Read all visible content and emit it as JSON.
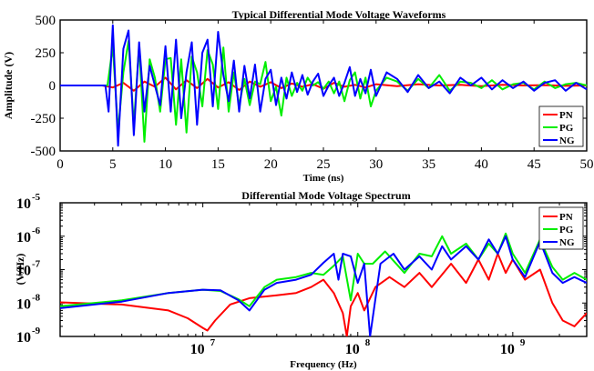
{
  "chart_data": [
    {
      "type": "line",
      "title": "Typical Differential Mode Voltage Waveforms",
      "xlabel": "Time (ns)",
      "ylabel": "Amplitude (V)",
      "xlim": [
        0,
        50
      ],
      "ylim": [
        -500,
        500
      ],
      "x_ticks": [
        "0",
        "5",
        "10",
        "15",
        "20",
        "25",
        "30",
        "35",
        "40",
        "45",
        "50"
      ],
      "y_ticks": [
        "500",
        "250",
        "0",
        "-250",
        "-500"
      ],
      "legend": {
        "placement": "bottom-right",
        "entries": [
          "PN",
          "PG",
          "NG"
        ]
      },
      "grid": false,
      "series": [
        {
          "name": "PN",
          "color": "#ff0000",
          "x": [
            0,
            4,
            5,
            6,
            7,
            8,
            9,
            10,
            11,
            12,
            13,
            14,
            15,
            16,
            17,
            18,
            19,
            20,
            21,
            22,
            23,
            24,
            25,
            26,
            27,
            28,
            29,
            30,
            32,
            34,
            36,
            38,
            40,
            42,
            44,
            46,
            48,
            50
          ],
          "values": [
            0,
            0,
            -15,
            20,
            -40,
            30,
            -10,
            60,
            -30,
            40,
            -20,
            50,
            -15,
            25,
            -35,
            30,
            -10,
            25,
            -20,
            15,
            -10,
            10,
            -25,
            20,
            -10,
            5,
            -15,
            10,
            -5,
            10,
            0,
            5,
            -5,
            5,
            0,
            3,
            -3,
            0
          ]
        },
        {
          "name": "PG",
          "color": "#00ee00",
          "x": [
            0,
            4.5,
            5,
            5.5,
            6,
            6.5,
            7,
            7.5,
            8,
            8.5,
            9,
            9.5,
            10,
            10.5,
            11,
            11.5,
            12,
            12.5,
            13,
            13.5,
            14,
            14.5,
            15,
            15.5,
            16,
            16.5,
            17,
            17.5,
            18,
            18.5,
            19,
            19.5,
            20,
            20.5,
            21,
            21.5,
            22,
            22.5,
            23,
            23.5,
            24,
            24.5,
            25,
            25.5,
            26,
            26.5,
            27,
            27.5,
            28,
            28.5,
            29,
            29.5,
            30,
            31,
            32,
            33,
            34,
            35,
            36,
            37,
            38,
            39,
            40,
            41,
            42,
            43,
            44,
            45,
            46,
            47,
            48,
            49,
            50
          ],
          "values": [
            0,
            0,
            300,
            -350,
            100,
            340,
            -300,
            300,
            -430,
            200,
            60,
            -200,
            200,
            210,
            -300,
            200,
            -360,
            220,
            100,
            -160,
            270,
            160,
            -180,
            290,
            -200,
            100,
            -150,
            50,
            -150,
            30,
            10,
            180,
            -120,
            -10,
            -230,
            60,
            -80,
            20,
            -40,
            60,
            0,
            25,
            -25,
            30,
            -60,
            30,
            -120,
            40,
            100,
            -100,
            60,
            -160,
            -40,
            60,
            30,
            -40,
            50,
            -20,
            80,
            -40,
            30,
            20,
            -20,
            40,
            -30,
            10,
            20,
            -30,
            30,
            -20,
            10,
            20,
            0
          ]
        },
        {
          "name": "NG",
          "color": "#0000ff",
          "x": [
            0,
            4.3,
            4.6,
            5,
            5.5,
            6,
            6.5,
            7,
            7.5,
            8,
            8.5,
            9,
            9.5,
            10,
            10.5,
            11,
            11.5,
            12,
            12.5,
            13,
            13.5,
            14,
            14.5,
            15,
            15.5,
            16,
            16.5,
            17,
            17.5,
            18,
            18.5,
            19,
            19.5,
            20,
            20.5,
            21,
            21.5,
            22,
            22.5,
            23,
            23.5,
            24,
            24.5,
            25,
            25.5,
            26,
            26.5,
            27,
            27.5,
            28,
            28.5,
            29,
            29.5,
            30,
            31,
            32,
            33,
            34,
            35,
            36,
            37,
            38,
            39,
            40,
            41,
            42,
            43,
            44,
            45,
            46,
            47,
            48,
            49,
            50
          ],
          "values": [
            0,
            0,
            -200,
            460,
            -460,
            280,
            420,
            -380,
            330,
            -200,
            150,
            0,
            -150,
            300,
            -200,
            350,
            -250,
            100,
            330,
            -300,
            250,
            350,
            -160,
            410,
            80,
            -120,
            190,
            -200,
            150,
            -100,
            160,
            -200,
            50,
            120,
            -150,
            60,
            -100,
            100,
            -50,
            80,
            -70,
            30,
            90,
            -80,
            0,
            60,
            -80,
            20,
            140,
            -80,
            50,
            -60,
            120,
            -80,
            100,
            50,
            -50,
            80,
            -20,
            30,
            -60,
            60,
            0,
            60,
            -30,
            40,
            -20,
            30,
            -40,
            20,
            40,
            -40,
            20,
            -30
          ]
        }
      ]
    },
    {
      "type": "line",
      "title": "Differential Mode Voltage Spectrum",
      "xlabel": "Frequency (Hz)",
      "ylabel": "(V/Hz)",
      "x_scale": "log",
      "y_scale": "log",
      "xlim": [
        1200000,
        3000000000
      ],
      "ylim": [
        1e-09,
        1e-05
      ],
      "x_ticks": [
        {
          "base": "10",
          "exp": "7"
        },
        {
          "base": "10",
          "exp": "8"
        },
        {
          "base": "10",
          "exp": "9"
        }
      ],
      "y_ticks": [
        {
          "base": "10",
          "exp": "-5"
        },
        {
          "base": "10",
          "exp": "-6"
        },
        {
          "base": "10",
          "exp": "-7"
        },
        {
          "base": "10",
          "exp": "-8"
        },
        {
          "base": "10",
          "exp": "-9"
        }
      ],
      "legend": {
        "placement": "top-right",
        "entries": [
          "PN",
          "PG",
          "NG"
        ]
      },
      "grid": false,
      "series": [
        {
          "name": "PN",
          "color": "#ff0000",
          "x": [
            1200000,
            3000000,
            6000000,
            8000000,
            10000000,
            10700000,
            12000000,
            15000000,
            20000000,
            30000000,
            40000000,
            50000000,
            60000000,
            70000000,
            80000000,
            85000000,
            90000000,
            100000000,
            110000000,
            130000000,
            160000000,
            200000000,
            250000000,
            300000000,
            400000000,
            500000000,
            600000000,
            700000000,
            800000000,
            900000000,
            1000000000,
            1200000000,
            1500000000,
            1800000000,
            2100000000,
            2500000000,
            3000000000
          ],
          "values": [
            1.05e-08,
            9e-09,
            6e-09,
            3.5e-09,
            1.8e-09,
            1.5e-09,
            3e-09,
            9e-09,
            1.4e-08,
            1.7e-08,
            2e-08,
            3e-08,
            5e-08,
            2e-08,
            5e-09,
            1e-09,
            8e-09,
            2e-08,
            6e-09,
            3e-08,
            6e-08,
            3e-08,
            8e-08,
            3e-08,
            1.5e-07,
            4e-08,
            2e-07,
            5e-08,
            3e-07,
            8e-08,
            2e-07,
            5e-08,
            1e-07,
            1e-08,
            3e-09,
            2e-09,
            5e-09
          ]
        },
        {
          "name": "PG",
          "color": "#00ee00",
          "x": [
            1200000,
            3000000,
            6000000,
            10000000,
            13000000,
            17000000,
            20000000,
            25000000,
            30000000,
            40000000,
            50000000,
            60000000,
            70000000,
            80000000,
            90000000,
            100000000,
            110000000,
            125000000,
            150000000,
            200000000,
            250000000,
            300000000,
            350000000,
            400000000,
            500000000,
            600000000,
            700000000,
            800000000,
            900000000,
            1000000000,
            1200000000,
            1500000000,
            1800000000,
            2100000000,
            2500000000,
            3000000000
          ],
          "values": [
            8e-09,
            1.2e-08,
            2e-08,
            2.5e-08,
            2.3e-08,
            1.3e-08,
            8e-09,
            3e-08,
            5e-08,
            6e-08,
            8e-08,
            7e-08,
            1.3e-07,
            2.5e-07,
            1.2e-08,
            3e-07,
            1.5e-07,
            1.5e-07,
            3.5e-07,
            8e-08,
            3e-07,
            2.5e-07,
            1e-06,
            3e-07,
            6e-07,
            2e-07,
            6e-07,
            3e-07,
            1.2e-06,
            3e-07,
            8e-08,
            8e-07,
            1.2e-07,
            5e-08,
            8e-08,
            5e-08
          ]
        },
        {
          "name": "NG",
          "color": "#0000ff",
          "x": [
            1200000,
            3000000,
            6000000,
            10000000,
            13000000,
            17000000,
            20000000,
            25000000,
            30000000,
            40000000,
            50000000,
            60000000,
            70000000,
            75000000,
            80000000,
            90000000,
            100000000,
            110000000,
            120000000,
            140000000,
            170000000,
            200000000,
            250000000,
            300000000,
            350000000,
            400000000,
            500000000,
            600000000,
            700000000,
            800000000,
            900000000,
            1000000000,
            1200000000,
            1500000000,
            1800000000,
            2100000000,
            2500000000,
            3000000000
          ],
          "values": [
            7e-09,
            1.1e-08,
            2e-08,
            2.5e-08,
            2.4e-08,
            1.2e-08,
            6e-09,
            2.5e-08,
            4e-08,
            5e-08,
            7e-08,
            1.6e-07,
            3e-07,
            5e-08,
            3e-07,
            2.5e-07,
            4e-08,
            1.5e-07,
            1e-09,
            1.5e-07,
            3e-07,
            1e-07,
            2.5e-07,
            1e-07,
            5e-07,
            2e-07,
            5e-07,
            2e-07,
            8e-07,
            3e-07,
            1e-06,
            2e-07,
            6e-08,
            7e-07,
            8e-08,
            4e-08,
            6e-08,
            4e-08
          ]
        }
      ]
    }
  ]
}
